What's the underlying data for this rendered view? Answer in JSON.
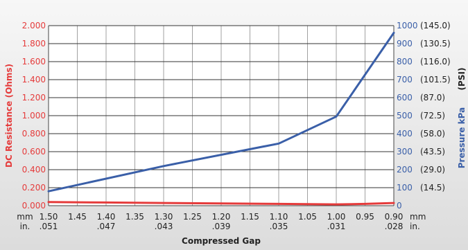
{
  "chart_data": {
    "type": "line",
    "xlabel": "Compressed Gap",
    "x_unit_mm": "mm",
    "x_unit_in": "in.",
    "x_mm": [
      1.5,
      1.45,
      1.4,
      1.35,
      1.3,
      1.25,
      1.2,
      1.15,
      1.1,
      1.05,
      1.0,
      0.95,
      0.9
    ],
    "x_mm_labels": [
      "1.50",
      "1.45",
      "1.40",
      "1.35",
      "1.30",
      "1.25",
      "1.20",
      "1.15",
      "1.10",
      "1.05",
      "1.00",
      "0.95",
      "0.90"
    ],
    "x_in_labels": [
      {
        "mm": 1.5,
        "label": ".051"
      },
      {
        "mm": 1.4,
        "label": ".047"
      },
      {
        "mm": 1.3,
        "label": ".043"
      },
      {
        "mm": 1.2,
        "label": ".039"
      },
      {
        "mm": 1.1,
        "label": ".035"
      },
      {
        "mm": 1.0,
        "label": ".031"
      },
      {
        "mm": 0.9,
        "label": ".028"
      }
    ],
    "xlim": [
      1.5,
      0.9
    ],
    "y_left": {
      "label": "DC Resistance (Ohms)",
      "ylim": [
        0,
        2.0
      ],
      "ticks": [
        "0.000",
        "0.200",
        "0.400",
        "0.600",
        "0.800",
        "1.000",
        "1.200",
        "1.400",
        "1.600",
        "1.800",
        "2.000"
      ],
      "color": "#e53b3b"
    },
    "y_right": {
      "label": "Pressure kPa",
      "label_psi": "(PSI)",
      "ylim": [
        0,
        1000
      ],
      "ticks_kpa": [
        "0",
        "100",
        "200",
        "300",
        "400",
        "500",
        "600",
        "700",
        "800",
        "900",
        "1000"
      ],
      "ticks_psi": [
        "",
        "(14.5)",
        "(29.0)",
        "(43.5)",
        "(58.0)",
        "(72.5)",
        "(87.0)",
        "(101.5)",
        "(116.0)",
        "(130.5)",
        "(145.0)"
      ],
      "color": "#3a5fa8"
    },
    "series": [
      {
        "axis": "left",
        "color": "#e53b3b",
        "x": [
          1.5,
          1.4,
          1.3,
          1.2,
          1.1,
          1.0,
          0.95,
          0.9
        ],
        "values": [
          0.04,
          0.035,
          0.03,
          0.025,
          0.02,
          0.015,
          0.02,
          0.03
        ]
      },
      {
        "axis": "right",
        "color": "#3a5fa8",
        "x": [
          1.5,
          1.3,
          1.1,
          1.0,
          0.9
        ],
        "values": [
          80,
          220,
          345,
          495,
          960
        ]
      }
    ],
    "grid": true
  }
}
